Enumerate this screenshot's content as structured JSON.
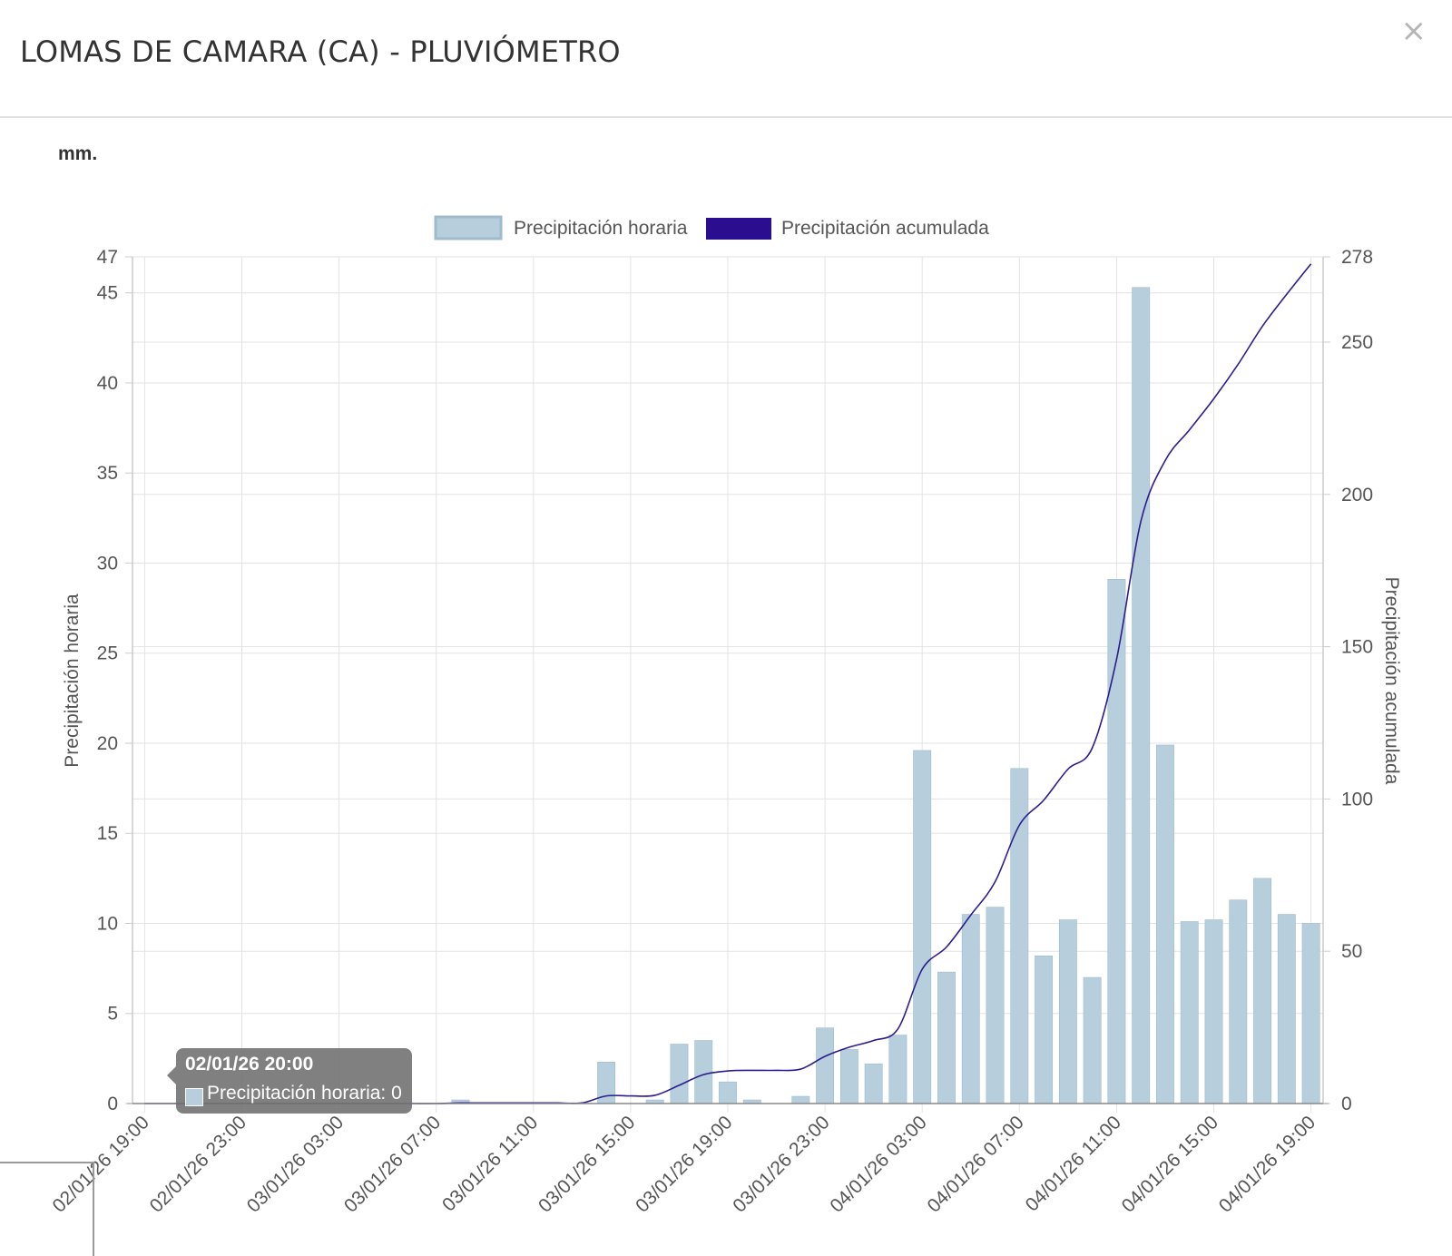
{
  "header": {
    "title": "LOMAS DE CAMARA (CA) - PLUVIÓMETRO",
    "close_label": "×"
  },
  "unit_label": "mm.",
  "tooltip": {
    "title": "02/01/26 20:00",
    "body": "Precipitación horaria: 0"
  },
  "colors": {
    "bar_fill": "#b7cedd",
    "bar_stroke": "#9fbccd",
    "line": "#2c1d8f",
    "legend_line": "#2b0d8f",
    "grid": "#e3e3e3",
    "axis": "#cccccc",
    "text": "#555555"
  },
  "chart_data": {
    "type": "bar",
    "title": "",
    "legend": [
      "Precipitación horaria",
      "Precipitación acumulada"
    ],
    "legend_position": "top-center",
    "ylabel_left": "Precipitación horaria",
    "ylabel_right": "Precipitación acumulada",
    "ylim_left": [
      0,
      47
    ],
    "ylim_right": [
      0,
      278
    ],
    "yticks_left": [
      0,
      5,
      10,
      15,
      20,
      25,
      30,
      35,
      40,
      45,
      47
    ],
    "yticks_right": [
      0,
      50,
      100,
      150,
      200,
      250,
      278
    ],
    "xticks": [
      "02/01/26 19:00",
      "02/01/26 23:00",
      "03/01/26 03:00",
      "03/01/26 07:00",
      "03/01/26 11:00",
      "03/01/26 15:00",
      "03/01/26 19:00",
      "03/01/26 23:00",
      "04/01/26 03:00",
      "04/01/26 07:00",
      "04/01/26 11:00",
      "04/01/26 15:00",
      "04/01/26 19:00"
    ],
    "categories": [
      "02/01/26 19:00",
      "02/01/26 20:00",
      "02/01/26 21:00",
      "02/01/26 22:00",
      "02/01/26 23:00",
      "03/01/26 00:00",
      "03/01/26 01:00",
      "03/01/26 02:00",
      "03/01/26 03:00",
      "03/01/26 04:00",
      "03/01/26 05:00",
      "03/01/26 06:00",
      "03/01/26 07:00",
      "03/01/26 08:00",
      "03/01/26 09:00",
      "03/01/26 10:00",
      "03/01/26 11:00",
      "03/01/26 12:00",
      "03/01/26 13:00",
      "03/01/26 14:00",
      "03/01/26 15:00",
      "03/01/26 16:00",
      "03/01/26 17:00",
      "03/01/26 18:00",
      "03/01/26 19:00",
      "03/01/26 20:00",
      "03/01/26 21:00",
      "03/01/26 22:00",
      "03/01/26 23:00",
      "04/01/26 00:00",
      "04/01/26 01:00",
      "04/01/26 02:00",
      "04/01/26 03:00",
      "04/01/26 04:00",
      "04/01/26 05:00",
      "04/01/26 06:00",
      "04/01/26 07:00",
      "04/01/26 08:00",
      "04/01/26 09:00",
      "04/01/26 10:00",
      "04/01/26 11:00",
      "04/01/26 12:00",
      "04/01/26 13:00",
      "04/01/26 14:00",
      "04/01/26 15:00",
      "04/01/26 16:00",
      "04/01/26 17:00",
      "04/01/26 18:00",
      "04/01/26 19:00"
    ],
    "series": [
      {
        "name": "Precipitación horaria",
        "type": "bar",
        "axis": "left",
        "values": [
          0,
          0,
          0,
          0,
          0,
          0,
          0,
          0,
          0,
          0,
          0,
          0,
          0,
          0.2,
          0,
          0,
          0,
          0,
          0,
          2.3,
          0,
          0.2,
          3.3,
          3.5,
          1.2,
          0.2,
          0,
          0.4,
          4.2,
          3.0,
          2.2,
          3.8,
          19.6,
          7.3,
          10.5,
          10.9,
          18.6,
          8.2,
          10.2,
          7.0,
          29.1,
          45.3,
          19.9,
          10.1,
          10.2,
          11.3,
          12.5,
          10.5,
          10.0
        ]
      },
      {
        "name": "Precipitación acumulada",
        "type": "line",
        "axis": "right",
        "values": [
          0,
          0,
          0,
          0,
          0,
          0,
          0,
          0,
          0,
          0,
          0,
          0,
          0,
          0.2,
          0.2,
          0.2,
          0.2,
          0.2,
          0.2,
          2.5,
          2.5,
          2.7,
          6.0,
          9.5,
          10.7,
          10.9,
          10.9,
          11.3,
          15.5,
          18.5,
          20.7,
          24.5,
          44.1,
          51.4,
          61.9,
          72.8,
          91.4,
          99.6,
          109.8,
          116.8,
          145.9,
          191.2,
          211.1,
          221.2,
          231.4,
          242.7,
          255.2,
          265.7,
          275.7
        ]
      }
    ]
  }
}
